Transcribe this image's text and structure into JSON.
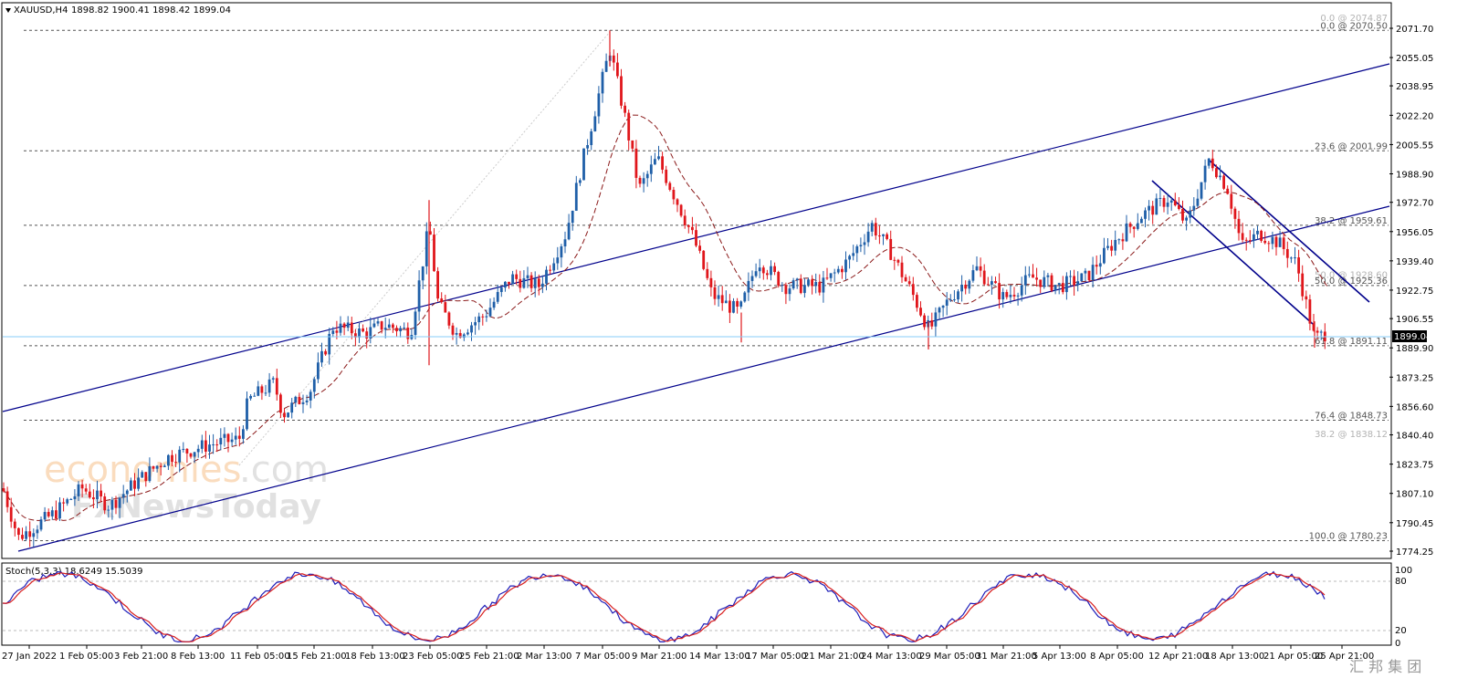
{
  "header": {
    "symbol": "XAUUSD,H4",
    "ohlc": "1898.82 1900.41 1898.42 1899.04"
  },
  "watermark": {
    "brand1": "economies",
    "brand2": ".com",
    "brand3": "FxNewsToday",
    "corner": "汇 邦 集 团"
  },
  "price_panel": {
    "y_ticks": [
      "2071.70",
      "2055.05",
      "2038.95",
      "2022.20",
      "2005.55",
      "1988.90",
      "1972.70",
      "1956.05",
      "1939.40",
      "1922.75",
      "1906.55",
      "1889.90",
      "1873.25",
      "1856.60",
      "1840.40",
      "1823.75",
      "1807.10",
      "1790.45",
      "1774.25"
    ],
    "current_price": "1899.04"
  },
  "fib_labels": [
    {
      "label": "0.0 @ 2074.87",
      "price": 2074.87,
      "faint": true
    },
    {
      "label": "0.0 @ 2070.50",
      "price": 2070.5,
      "faint": false
    },
    {
      "label": "23.6 @ 2001.99",
      "price": 2001.99,
      "faint": false
    },
    {
      "label": "38.2 @ 1959.61",
      "price": 1959.61,
      "faint": false
    },
    {
      "label": "50.0 @ 1928.60",
      "price": 1928.6,
      "faint": true
    },
    {
      "label": "50.0 @ 1925.36",
      "price": 1925.36,
      "faint": false
    },
    {
      "label": "61.8 @ 1891.11",
      "price": 1891.11,
      "faint": false
    },
    {
      "label": "76.4 @ 1848.73",
      "price": 1848.73,
      "faint": false
    },
    {
      "label": "38.2 @ 1838.12",
      "price": 1838.12,
      "faint": true
    },
    {
      "label": "100.0 @ 1780.23",
      "price": 1780.23,
      "faint": false
    }
  ],
  "x_labels": [
    "27 Jan 2022",
    "1 Feb 05:00",
    "3 Feb 21:00",
    "8 Feb 13:00",
    "11 Feb 05:00",
    "15 Feb 21:00",
    "18 Feb 13:00",
    "23 Feb 05:00",
    "25 Feb 21:00",
    "2 Mar 13:00",
    "7 Mar 05:00",
    "9 Mar 21:00",
    "14 Mar 13:00",
    "17 Mar 05:00",
    "21 Mar 21:00",
    "24 Mar 13:00",
    "29 Mar 05:00",
    "31 Mar 21:00",
    "5 Apr 13:00",
    "8 Apr 05:00",
    "12 Apr 21:00",
    "18 Apr 13:00",
    "21 Apr 05:00",
    "25 Apr 21:00"
  ],
  "stoch": {
    "title": "Stoch(5,3,3) 18.6249 15.5039",
    "ticks": [
      "100",
      "80",
      "20",
      "0"
    ]
  },
  "colors": {
    "bull": "#1f5fa8",
    "bear": "#e0161b",
    "channel": "#00008b",
    "ma": "#8b1a1a",
    "stoch_main": "#1c1cb8",
    "stoch_signal": "#d81e1e",
    "current": "#87cefa"
  },
  "chart_data": {
    "type": "candlestick",
    "timeframe": "H4",
    "y_range": [
      1774.25,
      2085
    ],
    "last_close": 1899.04,
    "key_points": [
      {
        "x": "27 Jan 2022",
        "price": 1782
      },
      {
        "x": "11 Feb 05:00",
        "price": 1860
      },
      {
        "x": "23 Feb 05:00",
        "price": 1974
      },
      {
        "x": "7 Mar 05:00",
        "price": 2070.5
      },
      {
        "x": "14 Mar 13:00",
        "price": 1895
      },
      {
        "x": "24 Mar 13:00",
        "price": 1965
      },
      {
        "x": "29 Mar 05:00",
        "price": 1890
      },
      {
        "x": "18 Apr 13:00",
        "price": 1998
      },
      {
        "x": "25 Apr 21:00",
        "price": 1891
      }
    ]
  }
}
